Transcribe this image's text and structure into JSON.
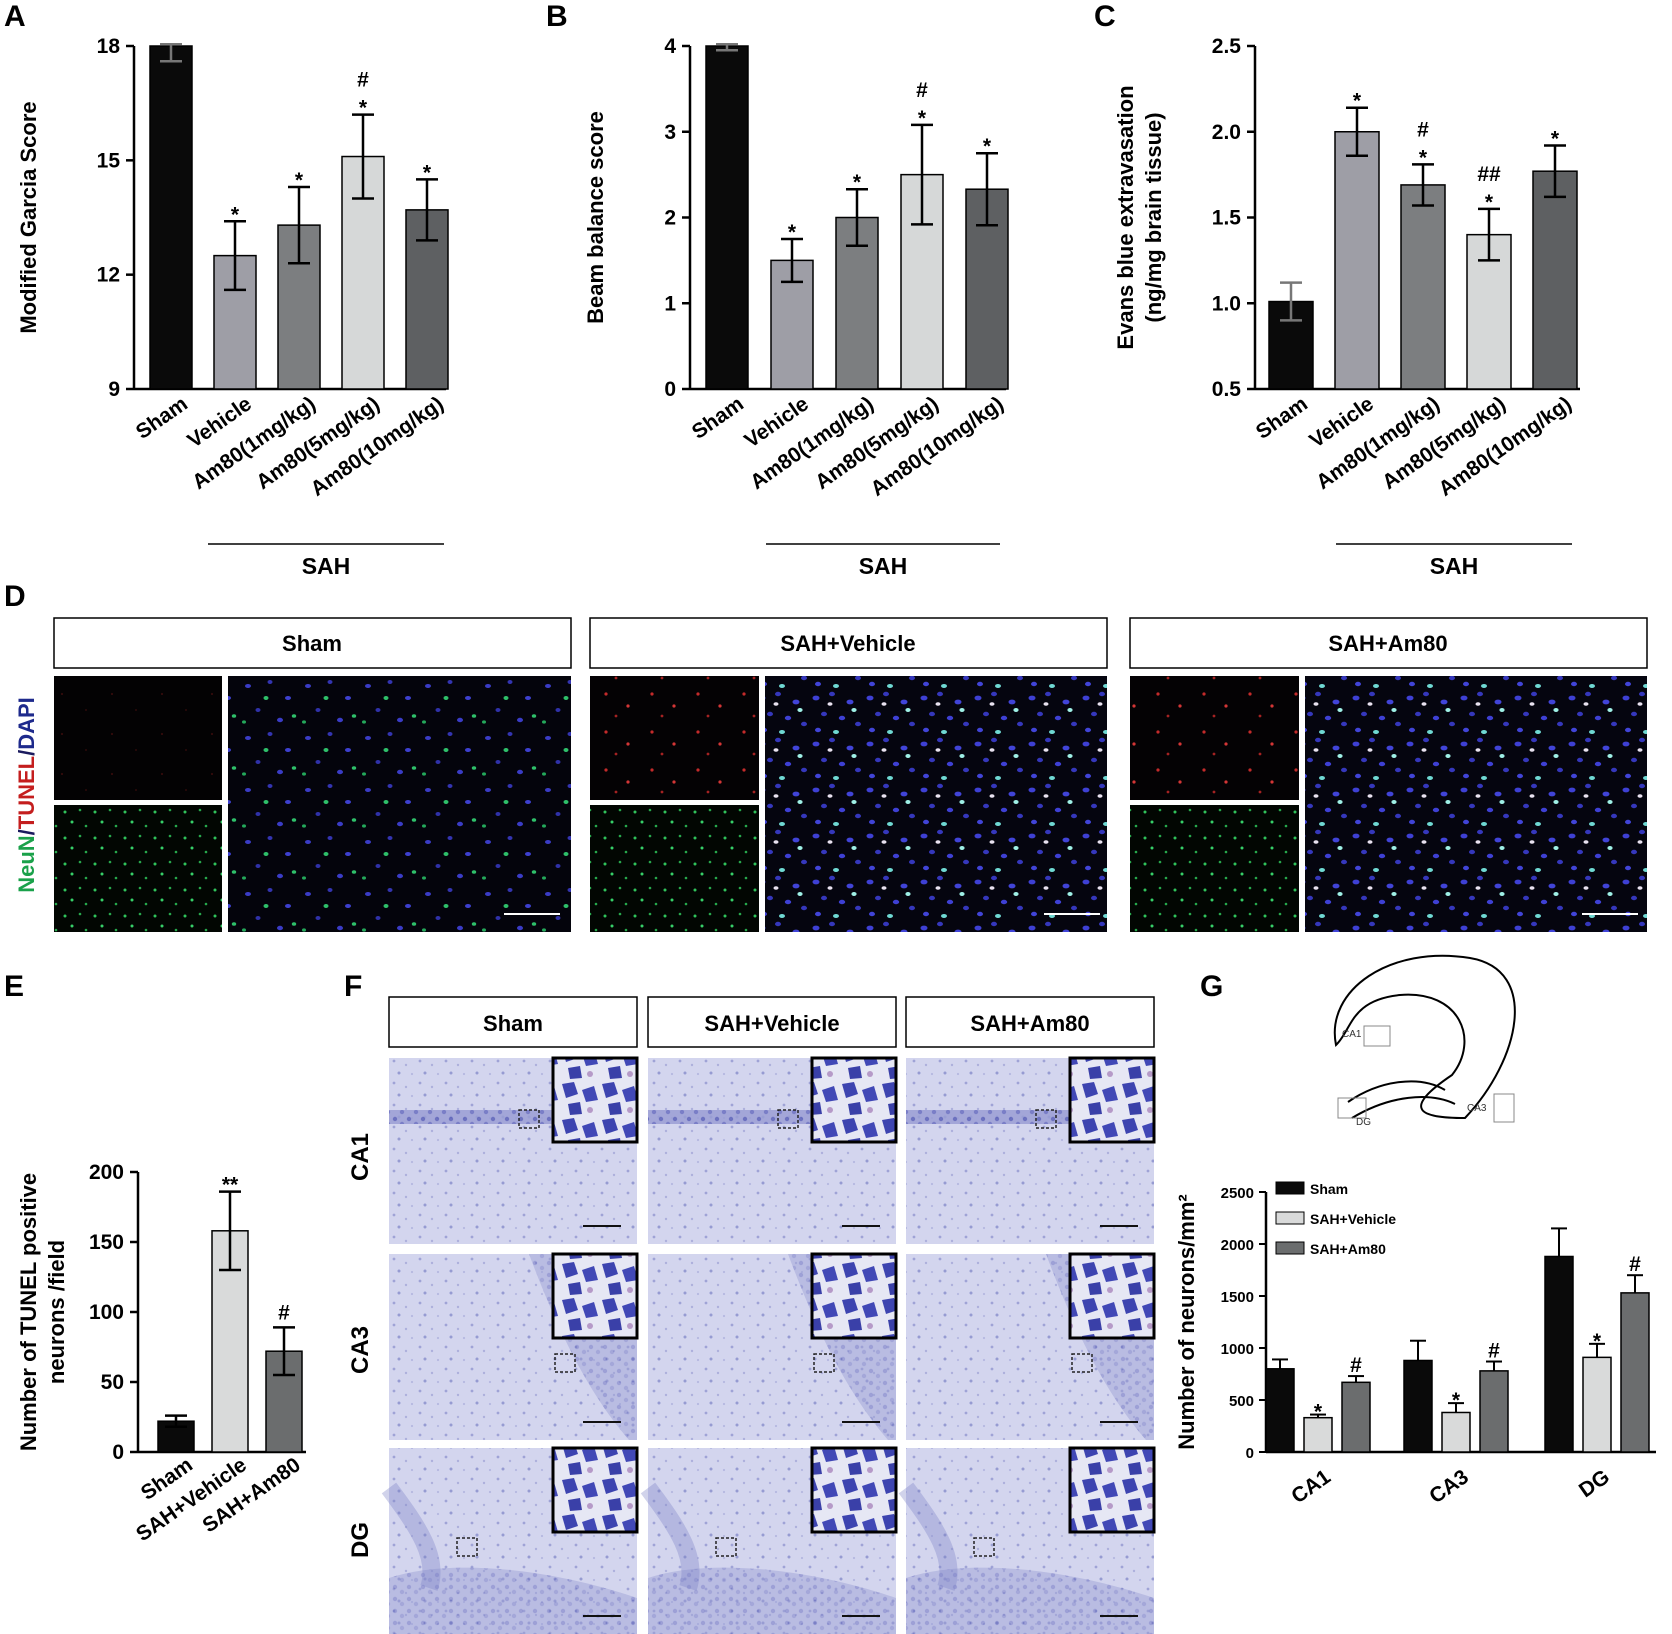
{
  "panel_labels": {
    "A": "A",
    "B": "B",
    "C": "C",
    "D": "D",
    "E": "E",
    "F": "F",
    "G": "G"
  },
  "bar_colors": {
    "sham": "#0a0a0a",
    "vehicle": "#9e9ea6",
    "am1": "#7c7e80",
    "am5": "#d6d8d8",
    "am10": "#5e6062",
    "cat_sham": "#0a0a0a",
    "cat_vehicle": "#d9dada",
    "cat_am80": "#6b6d6e"
  },
  "chart_data": [
    {
      "type": "bar",
      "id": "A",
      "categories": [
        "Sham",
        "Vehicle",
        "Am80(1mg/kg)",
        "Am80(5mg/kg)",
        "Am80(10mg/kg)"
      ],
      "values": [
        18,
        12.5,
        13.3,
        15.1,
        13.7
      ],
      "errors": [
        0.4,
        0.9,
        1.0,
        1.1,
        0.8
      ],
      "annotations": [
        "",
        "*",
        "*",
        "#\n*",
        "*"
      ],
      "ylabel": "Modified Garcia Score",
      "ylim": [
        9,
        18
      ],
      "yticks": [
        "9",
        "12",
        "15",
        "18"
      ],
      "group_label": "SAH"
    },
    {
      "type": "bar",
      "id": "B",
      "categories": [
        "Sham",
        "Vehicle",
        "Am80(1mg/kg)",
        "Am80(5mg/kg)",
        "Am80(10mg/kg)"
      ],
      "values": [
        4.0,
        1.5,
        2.0,
        2.5,
        2.33
      ],
      "errors": [
        0.05,
        0.25,
        0.33,
        0.58,
        0.42
      ],
      "annotations": [
        "",
        "*",
        "*",
        "#\n*",
        "*"
      ],
      "ylabel": "Beam balance score",
      "ylim": [
        0,
        4
      ],
      "yticks": [
        "0",
        "1",
        "2",
        "3",
        "4"
      ],
      "group_label": "SAH"
    },
    {
      "type": "bar",
      "id": "C",
      "categories": [
        "Sham",
        "Vehicle",
        "Am80(1mg/kg)",
        "Am80(5mg/kg)",
        "Am80(10mg/kg)"
      ],
      "values": [
        1.01,
        2.0,
        1.69,
        1.4,
        1.77
      ],
      "errors": [
        0.11,
        0.14,
        0.12,
        0.15,
        0.15
      ],
      "annotations": [
        "",
        "*",
        "#\n*",
        "##\n*",
        "*"
      ],
      "ylabel": "Evans blue extravasation",
      "ylabel2": "(ng/mg brain tissue)",
      "ylim": [
        0.5,
        2.5
      ],
      "yticks": [
        "0.5",
        "1.0",
        "1.5",
        "2.0",
        "2.5"
      ],
      "group_label": "SAH"
    },
    {
      "type": "bar",
      "id": "E",
      "categories": [
        "Sham",
        "SAH+Vehicle",
        "SAH+Am80"
      ],
      "values": [
        22,
        158,
        72
      ],
      "errors": [
        4,
        28,
        17
      ],
      "annotations": [
        "",
        "**",
        "#"
      ],
      "ylabel": "Number of TUNEL positive",
      "ylabel2": "neurons /field",
      "ylim": [
        0,
        200
      ],
      "yticks": [
        "0",
        "50",
        "100",
        "150",
        "200"
      ]
    },
    {
      "type": "bar",
      "id": "G",
      "categories": [
        "CA1",
        "CA3",
        "DG"
      ],
      "series": [
        {
          "name": "Sham",
          "values": [
            800,
            880,
            1880
          ],
          "errors": [
            90,
            190,
            270
          ]
        },
        {
          "name": "SAH+Vehicle",
          "values": [
            330,
            380,
            910
          ],
          "errors": [
            30,
            90,
            130
          ]
        },
        {
          "name": "SAH+Am80",
          "values": [
            670,
            780,
            1530
          ],
          "errors": [
            60,
            90,
            170
          ]
        }
      ],
      "annotations": [
        [
          "",
          "*",
          "#"
        ],
        [
          "",
          "*",
          "#"
        ],
        [
          "",
          "*",
          "#"
        ]
      ],
      "ylabel": "Number of neurons/mm²",
      "ylim": [
        0,
        2500
      ],
      "yticks": [
        "0",
        "500",
        "1000",
        "1500",
        "2000",
        "2500"
      ]
    }
  ],
  "panel_D": {
    "headers": [
      "Sham",
      "SAH+Vehicle",
      "SAH+Am80"
    ],
    "ylabel_parts": [
      "NeuN",
      "/",
      "TUNEL",
      "/",
      "DAPI"
    ]
  },
  "panel_F": {
    "headers": [
      "Sham",
      "SAH+Vehicle",
      "SAH+Am80"
    ],
    "rows": [
      "CA1",
      "CA3",
      "DG"
    ]
  },
  "panel_G_schematic": {
    "labels": [
      "CA1",
      "CA3",
      "DG"
    ]
  }
}
